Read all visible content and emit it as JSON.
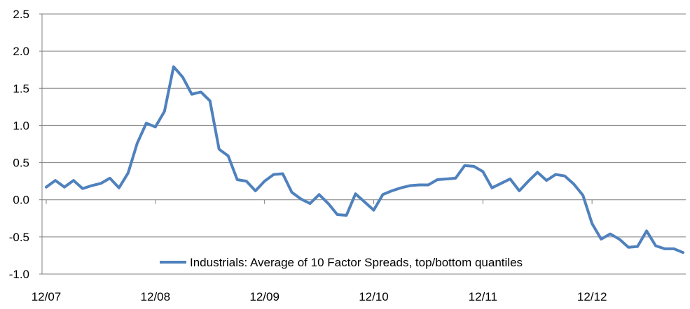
{
  "chart_data": {
    "type": "line",
    "title": "",
    "xlabel": "",
    "ylabel": "",
    "ylim": [
      -1.0,
      2.5
    ],
    "y_ticks": [
      "2.5",
      "2.0",
      "1.5",
      "1.0",
      "0.5",
      "0.0",
      "-0.5",
      "-1.0"
    ],
    "y_tick_values": [
      2.5,
      2.0,
      1.5,
      1.0,
      0.5,
      0.0,
      -0.5,
      -1.0
    ],
    "x_tick_labels": [
      "12/07",
      "12/08",
      "12/09",
      "12/10",
      "12/11",
      "12/12"
    ],
    "grid": "horizontal",
    "legend_position": "bottom-center",
    "line_color": "#4f81bd",
    "series": [
      {
        "name": "Industrials: Average of 10 Factor Spreads, top/bottom quantiles",
        "x": [
          "12/07",
          "01/08",
          "02/08",
          "03/08",
          "04/08",
          "05/08",
          "06/08",
          "07/08",
          "08/08",
          "09/08",
          "10/08",
          "11/08",
          "12/08",
          "01/09",
          "02/09",
          "03/09",
          "04/09",
          "05/09",
          "06/09",
          "07/09",
          "08/09",
          "09/09",
          "10/09",
          "11/09",
          "12/09",
          "01/10",
          "02/10",
          "03/10",
          "04/10",
          "05/10",
          "06/10",
          "07/10",
          "08/10",
          "09/10",
          "10/10",
          "11/10",
          "12/10",
          "01/11",
          "02/11",
          "03/11",
          "04/11",
          "05/11",
          "06/11",
          "07/11",
          "08/11",
          "09/11",
          "10/11",
          "11/11",
          "12/11",
          "01/12",
          "02/12",
          "03/12",
          "04/12",
          "05/12",
          "06/12",
          "07/12",
          "08/12",
          "09/12",
          "10/12",
          "11/12",
          "12/12",
          "01/13",
          "02/13",
          "03/13",
          "04/13",
          "05/13",
          "06/13",
          "07/13",
          "08/13",
          "09/13",
          "10/13"
        ],
        "values": [
          0.17,
          0.26,
          0.17,
          0.26,
          0.15,
          0.19,
          0.22,
          0.29,
          0.16,
          0.36,
          0.76,
          1.03,
          0.98,
          1.19,
          1.79,
          1.65,
          1.42,
          1.45,
          1.33,
          0.68,
          0.59,
          0.27,
          0.25,
          0.12,
          0.25,
          0.34,
          0.35,
          0.1,
          0.01,
          -0.05,
          0.07,
          -0.05,
          -0.2,
          -0.21,
          0.08,
          -0.03,
          -0.14,
          0.07,
          0.12,
          0.16,
          0.19,
          0.2,
          0.2,
          0.27,
          0.28,
          0.29,
          0.46,
          0.45,
          0.38,
          0.16,
          0.22,
          0.28,
          0.12,
          0.25,
          0.37,
          0.26,
          0.34,
          0.32,
          0.21,
          0.06,
          -0.32,
          -0.53,
          -0.46,
          -0.53,
          -0.64,
          -0.63,
          -0.42,
          -0.62,
          -0.66,
          -0.66,
          -0.71
        ]
      }
    ]
  }
}
